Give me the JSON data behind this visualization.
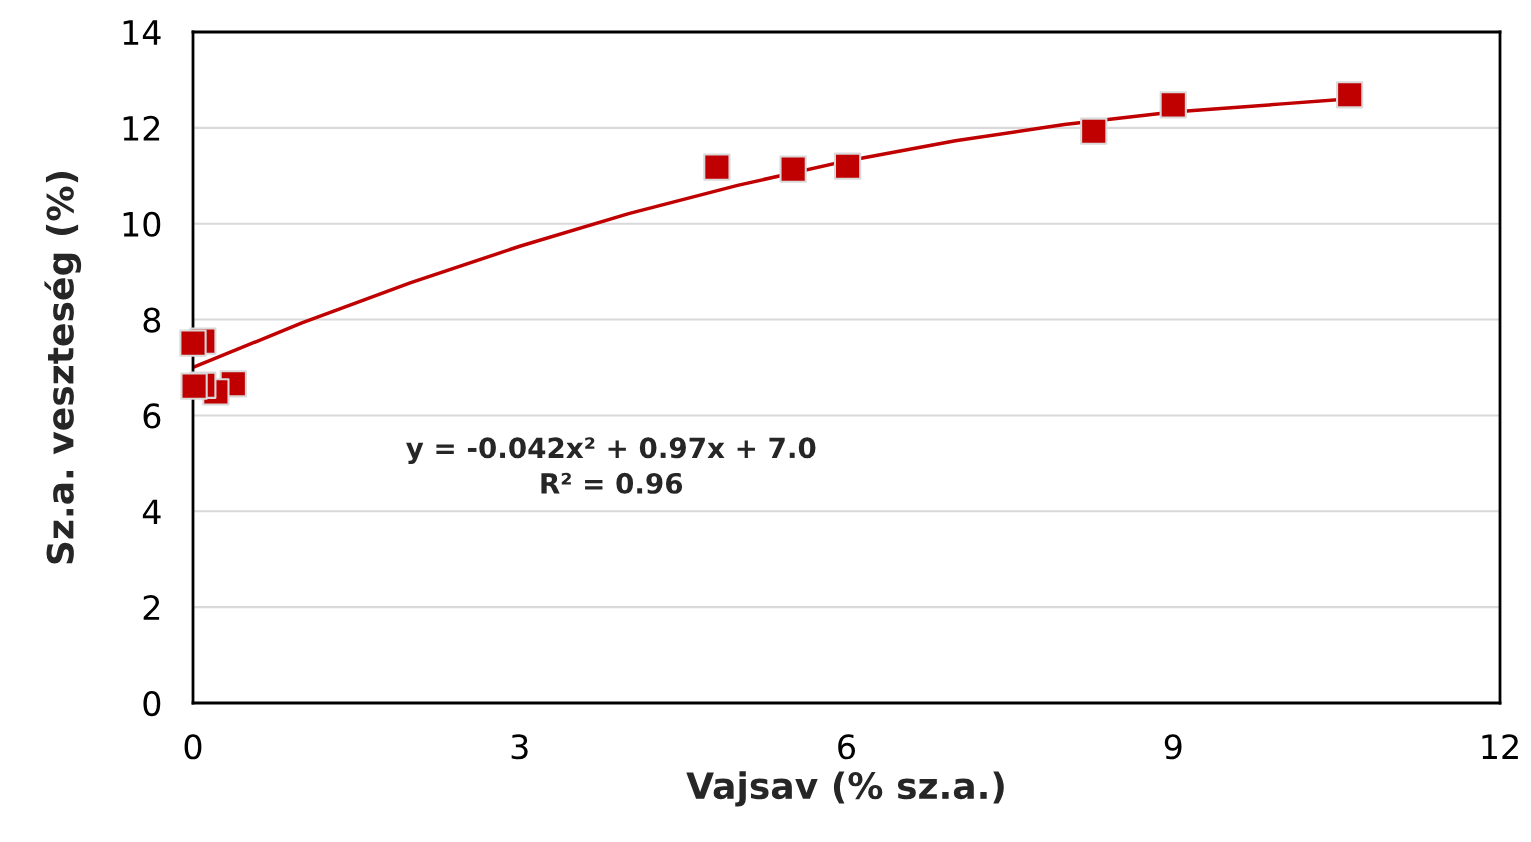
{
  "chart_data": {
    "type": "scatter",
    "xlabel": "Vajsav (% sz.a.)",
    "ylabel": "Sz.a. veszteség (%)",
    "series": [
      {
        "color": "#c00000",
        "marker": "square",
        "x": [
          0.37,
          0.21,
          0.09,
          0.09,
          0.0,
          0.01,
          4.81,
          5.51,
          6.01,
          8.27,
          9.0,
          10.62
        ],
        "values": [
          6.66,
          6.49,
          6.63,
          7.55,
          7.51,
          6.61,
          11.18,
          11.14,
          11.2,
          11.93,
          12.48,
          12.69
        ]
      },
      {
        "type": "line",
        "color": "#c00000",
        "marker": "none",
        "x": [
          0,
          1,
          2,
          3,
          4,
          5,
          6,
          7,
          8,
          9,
          10,
          10.6
        ],
        "values": [
          7.0,
          7.93,
          8.77,
          9.53,
          10.21,
          10.8,
          11.31,
          11.73,
          12.07,
          12.33,
          12.5,
          12.6
        ]
      }
    ],
    "annotations": [
      "y = -0.042x² + 0.97x + 7.0\nR² = 0.96"
    ],
    "xlim": [
      0,
      12
    ],
    "xticks": [
      0,
      3,
      6,
      9,
      12
    ],
    "ylim": [
      0,
      14
    ],
    "yticks": [
      0,
      2,
      4,
      6,
      8,
      10,
      12,
      14
    ],
    "grid": "y",
    "legend": false
  }
}
